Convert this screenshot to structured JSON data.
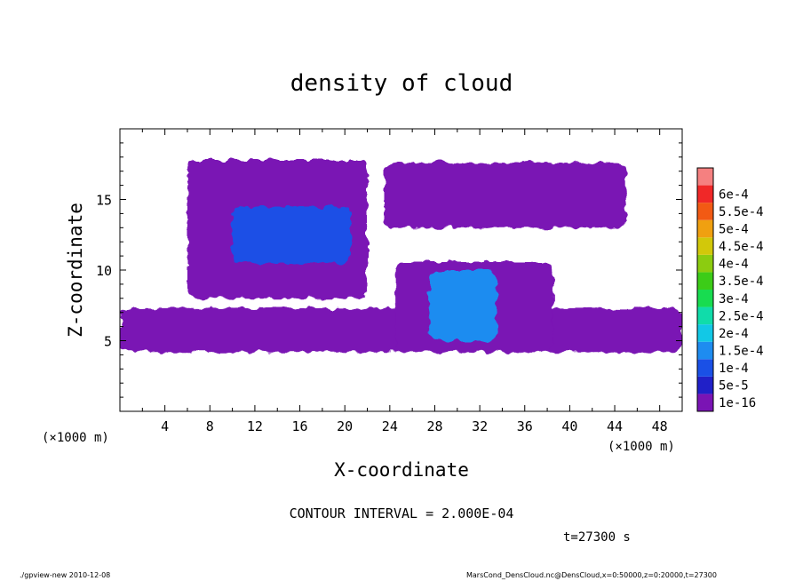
{
  "chart_data": {
    "type": "heatmap",
    "title": "density of cloud",
    "xlabel": "X-coordinate",
    "ylabel": "Z-coordinate",
    "x_unit": "(×1000 m)",
    "y_unit": "(×1000 m)",
    "xlim": [
      0,
      50
    ],
    "ylim": [
      0,
      20
    ],
    "x_ticks": [
      4,
      8,
      12,
      16,
      20,
      24,
      28,
      32,
      36,
      40,
      44,
      48
    ],
    "y_ticks": [
      5,
      10,
      15
    ],
    "colorbar": {
      "labels": [
        "1e-16",
        "5e-5",
        "1e-4",
        "1.5e-4",
        "2e-4",
        "2.5e-4",
        "3e-4",
        "3.5e-4",
        "4e-4",
        "4.5e-4",
        "5e-4",
        "5.5e-4",
        "6e-4"
      ],
      "colors": [
        "#7a14b4",
        "#2020c8",
        "#1a50e6",
        "#1e8cf0",
        "#12c8e6",
        "#10dcaa",
        "#18dc50",
        "#3ccc18",
        "#8ccc10",
        "#d2c80a",
        "#f0a010",
        "#f25a14",
        "#f02828",
        "#f58080"
      ]
    },
    "cloud_regions": [
      {
        "layer": "base",
        "x": [
          0,
          50
        ],
        "z": [
          4.2,
          7.3
        ],
        "level": "1e-16"
      },
      {
        "layer": "upper-left",
        "x": [
          6,
          22
        ],
        "z": [
          8.0,
          17.8
        ],
        "level": "1e-16"
      },
      {
        "layer": "upper-right",
        "x": [
          23.5,
          45
        ],
        "z": [
          13.0,
          17.6
        ],
        "level": "1e-16"
      },
      {
        "layer": "central-column",
        "x": [
          24.5,
          38.5
        ],
        "z": [
          4.2,
          10.6
        ],
        "level": "1e-16"
      },
      {
        "layer": "core-left",
        "x": [
          10,
          20.5
        ],
        "z": [
          10.5,
          14.5
        ],
        "level": "1e-4"
      },
      {
        "layer": "core-right",
        "x": [
          27.5,
          33.5
        ],
        "z": [
          5.0,
          10.0
        ],
        "level": "1.5e-4"
      }
    ],
    "annotations": {
      "contour_interval": "CONTOUR INTERVAL = 2.000E-04",
      "time": "t=27300 s"
    },
    "grid": false,
    "legend_position": "right"
  },
  "footer": {
    "left": "./gpview-new   2010-12-08",
    "right": "MarsCond_DensCloud.nc@DensCloud,x=0:50000,z=0:20000,t=27300"
  }
}
